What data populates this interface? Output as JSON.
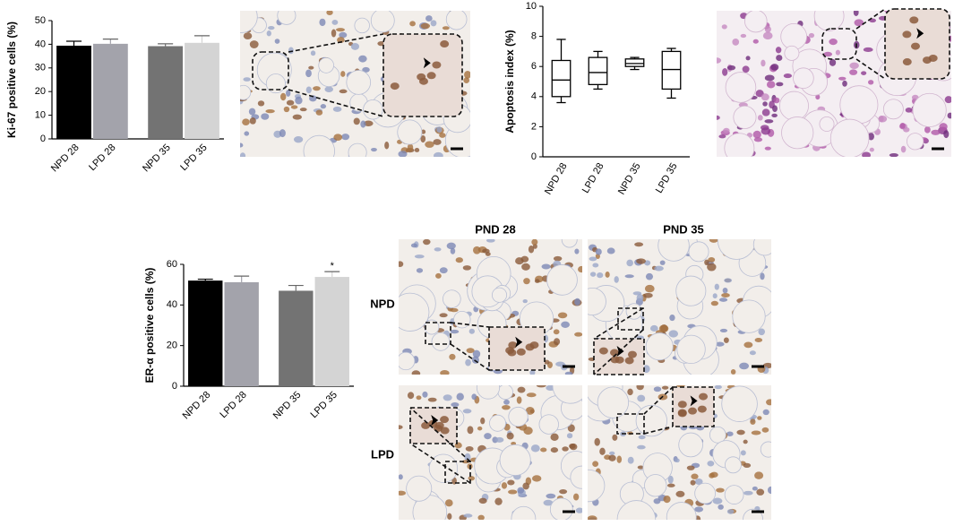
{
  "chart_data": [
    {
      "type": "bar",
      "ylabel": "Ki-67 positive cells (%)",
      "categories": [
        "NPD 28",
        "LPD 28",
        "NPD 35",
        "LPD 35"
      ],
      "values": [
        39.4,
        40.2,
        39.2,
        40.6
      ],
      "errors": [
        1.9,
        2.0,
        1.0,
        3.0
      ],
      "colors": [
        "#000000",
        "#a3a3ab",
        "#737373",
        "#d4d4d4"
      ],
      "ylim": [
        0,
        50
      ],
      "yticks": [
        0,
        10,
        20,
        30,
        40,
        50
      ]
    },
    {
      "type": "box",
      "ylabel": "Apoptosis index (%)",
      "categories": [
        "NPD 28",
        "LPD 28",
        "NPD 35",
        "LPD 35"
      ],
      "min": [
        3.6,
        4.5,
        5.8,
        3.9
      ],
      "q1": [
        4.0,
        4.8,
        6.0,
        4.5
      ],
      "median": [
        5.1,
        5.6,
        6.2,
        5.8
      ],
      "q3": [
        6.4,
        6.6,
        6.5,
        7.0
      ],
      "max": [
        7.8,
        7.0,
        6.6,
        7.2
      ],
      "ylim": [
        0,
        10
      ],
      "yticks": [
        0,
        2,
        4,
        6,
        8,
        10
      ]
    },
    {
      "type": "bar",
      "ylabel": "ER-α positive cells (%)",
      "categories": [
        "NPD 28",
        "LPD 28",
        "NPD 35",
        "LPD 35"
      ],
      "values": [
        52,
        51.2,
        47,
        53.8
      ],
      "errors": [
        0.7,
        3.0,
        2.6,
        2.6
      ],
      "colors": [
        "#000000",
        "#a3a3ab",
        "#737373",
        "#d4d4d4"
      ],
      "ylim": [
        0,
        60
      ],
      "yticks": [
        0,
        20,
        40,
        60
      ],
      "annotation": {
        "text": "*",
        "category": "LPD 35"
      }
    }
  ],
  "micrographs": {
    "columns": [
      "PND 28",
      "PND 35"
    ],
    "rows": [
      "NPD",
      "LPD"
    ]
  }
}
